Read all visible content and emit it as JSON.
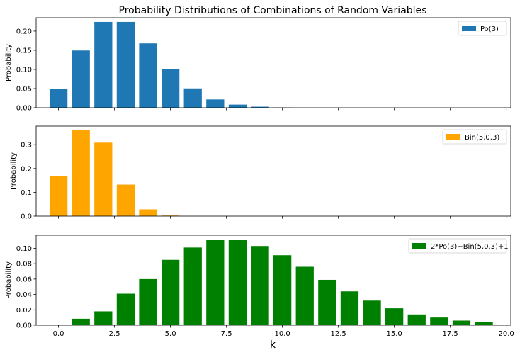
{
  "chart_data": {
    "title": "Probability Distributions of Combinations of Random Variables",
    "xlabel": "k",
    "xlim": [
      -1,
      20.2
    ],
    "xticks": [
      "0.0",
      "2.5",
      "5.0",
      "7.5",
      "10.0",
      "12.5",
      "15.0",
      "17.5",
      "20.0"
    ],
    "xtick_values": [
      0,
      2.5,
      5,
      7.5,
      10,
      12.5,
      15,
      17.5,
      20
    ],
    "shared_x": true,
    "panels": [
      {
        "type": "bar",
        "ylabel": "Probability",
        "ylim": [
          0,
          0.235
        ],
        "yticks": [
          "0.00",
          "0.05",
          "0.10",
          "0.15",
          "0.20"
        ],
        "ytick_values": [
          0,
          0.05,
          0.1,
          0.15,
          0.2
        ],
        "legend": "top-right",
        "series": [
          {
            "name": "Po(3)",
            "color": "#1f77b4",
            "x": [
              0,
              1,
              2,
              3,
              4,
              5,
              6,
              7,
              8,
              9,
              10
            ],
            "values": [
              0.0498,
              0.1494,
              0.224,
              0.224,
              0.168,
              0.1008,
              0.0504,
              0.0216,
              0.0081,
              0.0027,
              0.0008
            ]
          }
        ]
      },
      {
        "type": "bar",
        "ylabel": "Probability",
        "ylim": [
          0,
          0.378
        ],
        "yticks": [
          "0.0",
          "0.1",
          "0.2",
          "0.3"
        ],
        "ytick_values": [
          0,
          0.1,
          0.2,
          0.3
        ],
        "legend": "top-right",
        "series": [
          {
            "name": "Bin(5,0.3)",
            "color": "#ffa500",
            "x": [
              0,
              1,
              2,
              3,
              4,
              5
            ],
            "values": [
              0.1681,
              0.3601,
              0.3087,
              0.1323,
              0.0283,
              0.0024
            ]
          }
        ]
      },
      {
        "type": "bar",
        "ylabel": "Probability",
        "ylim": [
          0,
          0.117
        ],
        "yticks": [
          "0.00",
          "0.02",
          "0.04",
          "0.06",
          "0.08",
          "0.10"
        ],
        "ytick_values": [
          0,
          0.02,
          0.04,
          0.06,
          0.08,
          0.1
        ],
        "legend": "top-right",
        "series": [
          {
            "name": "2*Po(3)+Bin(5,0.3)+1",
            "color": "#008000",
            "x": [
              1,
              2,
              3,
              4,
              5,
              6,
              7,
              8,
              9,
              10,
              11,
              12,
              13,
              14,
              15,
              16,
              17,
              18,
              19
            ],
            "values": [
              0.0084,
              0.018,
              0.041,
              0.06,
              0.085,
              0.101,
              0.111,
              0.111,
              0.103,
              0.091,
              0.076,
              0.059,
              0.044,
              0.032,
              0.022,
              0.014,
              0.01,
              0.006,
              0.004
            ]
          }
        ]
      }
    ]
  }
}
